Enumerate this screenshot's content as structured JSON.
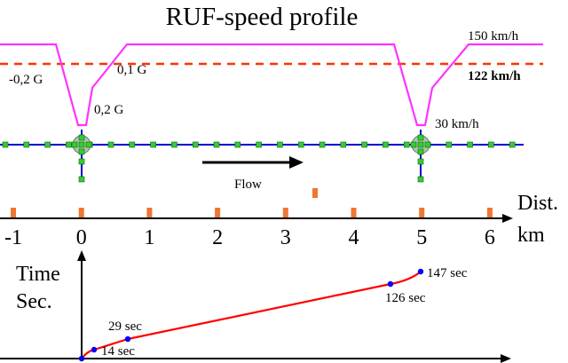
{
  "title": "RUF-speed profile",
  "speed_profile": {
    "labels": {
      "top_speed": "150 km/h",
      "reference_speed": "122 km/h",
      "station_speed": "30 km/h",
      "decel_outer": "-0,2 G",
      "decel_inner": "0,2 G",
      "accel_outer": "0,1 G"
    },
    "colors": {
      "profile": "#ff33ff",
      "reference": "#ff3300"
    }
  },
  "track": {
    "flow_label": "Flow",
    "colors": {
      "line": "#0000cc",
      "marker": "#33cc33",
      "station": "#a9c9a9"
    }
  },
  "distance_axis": {
    "label_line1": "Dist.",
    "label_line2": "km",
    "ticks": [
      "-1",
      "0",
      "1",
      "2",
      "3",
      "4",
      "5",
      "6"
    ],
    "marker_color": "#ee7733"
  },
  "time_chart": {
    "ylabel_line1": "Time",
    "ylabel_line2": "Sec.",
    "points": [
      "14 sec",
      "29 sec",
      "126 sec",
      "147 sec"
    ],
    "colors": {
      "curve": "#ff0000",
      "point": "#0000ff"
    }
  }
}
